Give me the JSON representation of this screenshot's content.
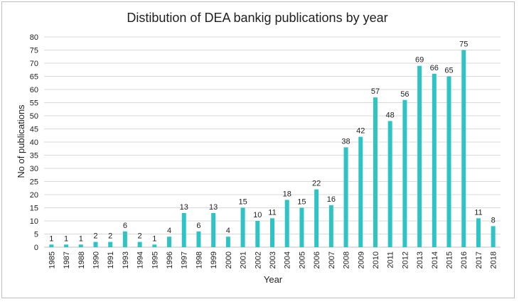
{
  "chart_data": {
    "type": "bar",
    "title": "Distibution of DEA bankig publications by year",
    "xlabel": "Year",
    "ylabel": "No of publications",
    "ylim": [
      0,
      80
    ],
    "ytick_step": 5,
    "grid": true,
    "legend": "none",
    "bar_color": "#2EC4C6",
    "categories": [
      "1985",
      "1987",
      "1988",
      "1990",
      "1991",
      "1993",
      "1994",
      "1995",
      "1996",
      "1997",
      "1998",
      "1999",
      "2000",
      "2001",
      "2002",
      "2003",
      "2004",
      "2005",
      "2006",
      "2007",
      "2008",
      "2009",
      "2010",
      "2011",
      "2012",
      "2013",
      "2014",
      "2015",
      "2016",
      "2017",
      "2018"
    ],
    "values": [
      1,
      1,
      1,
      2,
      2,
      6,
      2,
      1,
      4,
      13,
      6,
      13,
      4,
      15,
      10,
      11,
      18,
      15,
      22,
      16,
      38,
      42,
      57,
      48,
      56,
      69,
      66,
      65,
      75,
      11,
      8
    ]
  }
}
